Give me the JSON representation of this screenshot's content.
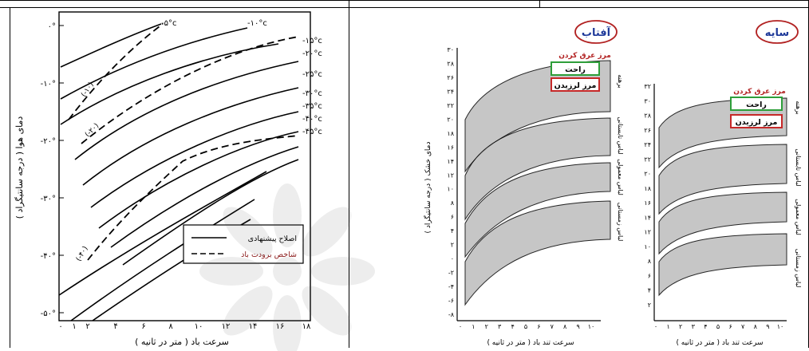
{
  "table": {
    "cells": [
      "",
      ""
    ]
  },
  "left_chart": {
    "ylabel": "دمای هوا ( درجه سانتیگراد )",
    "xlabel": "سرعت باد ( متر در ثانیه )",
    "y_ticks": [
      "۰°",
      "-۱۰°",
      "-۲۰°",
      "-۳۰°",
      "-۴۰°",
      "-۵۰°"
    ],
    "x_ticks": [
      "۰",
      "۱",
      "۲",
      "۴",
      "۶",
      "۸",
      "۱۰",
      "۱۲",
      "۱۴",
      "۱۶",
      "۱۸"
    ],
    "curve_labels": [
      "-۵°c",
      "-۱۰°c",
      "-۱۵°c",
      "-۲۰°c",
      "-۲۵°c",
      "-۳۰°c",
      "-۳۵°c",
      "-۴۰°c",
      "-۴۵°c"
    ],
    "dashed_labels": [
      "(-۱۰)",
      "(-۲۰)",
      "(-۴۰)"
    ],
    "legend": {
      "solid": "اصلاح پیشنهادی",
      "dashed": "شاخص برودت باد"
    }
  },
  "sun_chart": {
    "title": "آفتاب",
    "ylabel": "دمای خشک ( درجه سانتیگراد )",
    "xlabel": "سرعت تند باد ( متر در ثانیه )",
    "y_ticks": [
      "۳۰",
      "۲۸",
      "۲۶",
      "۲۴",
      "۲۲",
      "۲۰",
      "۱۸",
      "۱۶",
      "۱۴",
      "۱۲",
      "۱۰",
      "۸",
      "۶",
      "۴",
      "۲",
      "۰",
      "-۲",
      "-۴",
      "-۶",
      "-۸"
    ],
    "x_ticks": [
      "۰",
      "۱",
      "۲",
      "۳",
      "۴",
      "۵",
      "۶",
      "۷",
      "۸",
      "۹",
      "۱۰"
    ],
    "heading": "مرز عرق کردن",
    "comfort": "راحت",
    "shiver": "مرز لرزیدن",
    "bands": [
      "برهنه",
      "لباس تابستانی",
      "لباس معمولی",
      "لباس زمستانی"
    ]
  },
  "shade_chart": {
    "title": "سایه",
    "xlabel": "سرعت تند باد ( متر در ثانیه )",
    "y_ticks": [
      "۳۲",
      "۳۰",
      "۲۸",
      "۲۶",
      "۲۴",
      "۲۲",
      "۲۰",
      "۱۸",
      "۱۶",
      "۱۴",
      "۱۲",
      "۱۰",
      "۸",
      "۶",
      "۴",
      "۲"
    ],
    "x_ticks": [
      "۰",
      "۱",
      "۲",
      "۳",
      "۴",
      "۵",
      "۶",
      "۷",
      "۸",
      "۹",
      "۱۰"
    ],
    "heading": "مرز عرق کردن",
    "comfort": "راحت",
    "shiver": "مرز لرزیدن",
    "bands": [
      "برهنه",
      "لباس تابستانی",
      "لباس معمولی",
      "لباس زمستانی"
    ]
  }
}
